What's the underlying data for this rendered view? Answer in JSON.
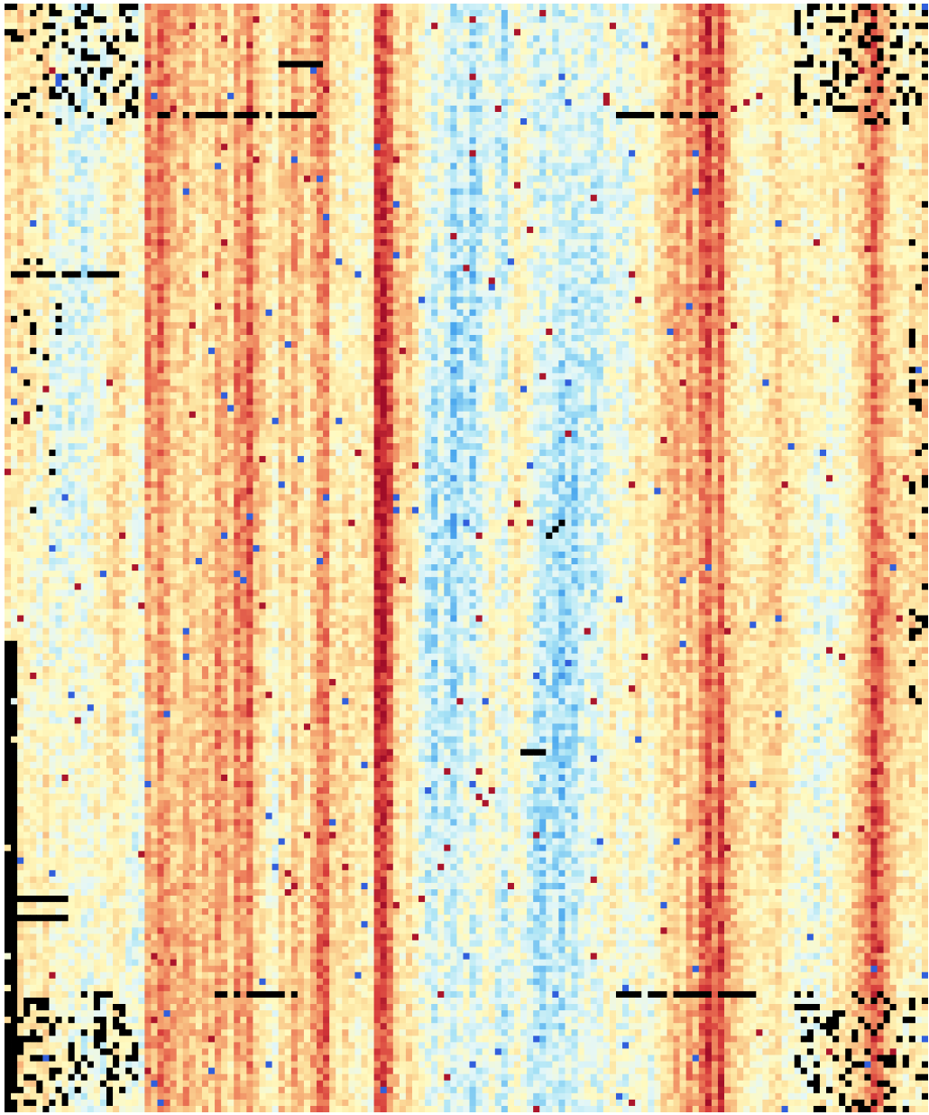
{
  "chart_data": {
    "type": "heatmap",
    "title": "",
    "xlabel": "",
    "ylabel": "",
    "grid": false,
    "legend": "none",
    "n_cols": 145,
    "n_rows": 174,
    "colormap": {
      "name": "RdYlBu_r",
      "stops": [
        "#2c4fd8",
        "#4aa7ee",
        "#a9e3f5",
        "#e4f7f8",
        "#fffac0",
        "#fde3a0",
        "#f7b47a",
        "#ec7a58",
        "#d63a3a",
        "#a10d28"
      ],
      "nodata_color": "#000000"
    },
    "value_range": [
      0,
      1
    ],
    "column_profile": [
      0.52,
      0.46,
      0.55,
      0.48,
      0.5,
      0.44,
      0.52,
      0.4,
      0.38,
      0.42,
      0.36,
      0.4,
      0.34,
      0.38,
      0.44,
      0.4,
      0.48,
      0.55,
      0.5,
      0.42,
      0.38,
      0.4,
      0.72,
      0.66,
      0.78,
      0.7,
      0.62,
      0.58,
      0.66,
      0.6,
      0.54,
      0.62,
      0.58,
      0.7,
      0.64,
      0.56,
      0.74,
      0.68,
      0.8,
      0.62,
      0.56,
      0.48,
      0.44,
      0.6,
      0.52,
      0.66,
      0.58,
      0.5,
      0.64,
      0.74,
      0.78,
      0.54,
      0.48,
      0.56,
      0.5,
      0.46,
      0.52,
      0.48,
      0.88,
      0.92,
      0.8,
      0.6,
      0.52,
      0.58,
      0.48,
      0.38,
      0.32,
      0.28,
      0.36,
      0.3,
      0.24,
      0.3,
      0.34,
      0.26,
      0.32,
      0.38,
      0.42,
      0.34,
      0.3,
      0.4,
      0.48,
      0.42,
      0.36,
      0.3,
      0.26,
      0.32,
      0.28,
      0.24,
      0.3,
      0.26,
      0.32,
      0.36,
      0.3,
      0.34,
      0.4,
      0.44,
      0.38,
      0.36,
      0.42,
      0.5,
      0.46,
      0.4,
      0.52,
      0.56,
      0.6,
      0.66,
      0.58,
      0.7,
      0.62,
      0.78,
      0.86,
      0.72,
      0.84,
      0.64,
      0.58,
      0.52,
      0.5,
      0.46,
      0.48,
      0.52,
      0.54,
      0.58,
      0.5,
      0.48,
      0.46,
      0.42,
      0.44,
      0.38,
      0.46,
      0.4,
      0.48,
      0.44,
      0.5,
      0.56,
      0.62,
      0.7,
      0.84,
      0.76,
      0.64,
      0.58,
      0.52,
      0.48,
      0.54,
      0.5,
      0.56
    ],
    "nodata_regions": [
      {
        "cols": [
          0,
          20
        ],
        "rows": [
          0,
          18
        ],
        "density": 0.22
      },
      {
        "cols": [
          124,
          144
        ],
        "rows": [
          0,
          18
        ],
        "density": 0.22
      },
      {
        "cols": [
          0,
          20
        ],
        "rows": [
          155,
          173
        ],
        "density": 0.22
      },
      {
        "cols": [
          124,
          144
        ],
        "rows": [
          155,
          173
        ],
        "density": 0.22
      },
      {
        "cols": [
          0,
          1
        ],
        "rows": [
          100,
          173
        ],
        "density": 0.95
      },
      {
        "cols": [
          142,
          144
        ],
        "rows": [
          30,
          110
        ],
        "density": 0.12
      },
      {
        "cols": [
          0,
          8
        ],
        "rows": [
          40,
          80
        ],
        "density": 0.06
      }
    ],
    "nodata_lines": [
      {
        "col_start": 23,
        "col_end": 48,
        "row": 17
      },
      {
        "col_start": 96,
        "col_end": 112,
        "row": 17
      },
      {
        "col_start": 33,
        "col_end": 45,
        "row": 155
      },
      {
        "col_start": 96,
        "col_end": 117,
        "row": 155
      },
      {
        "col_start": 43,
        "col_end": 49,
        "row": 9
      },
      {
        "col_start": 1,
        "col_end": 17,
        "row": 42
      },
      {
        "col_start": 1,
        "col_end": 9,
        "row": 140
      },
      {
        "col_start": 1,
        "col_end": 9,
        "row": 143
      },
      {
        "col_start": 84,
        "col_end": 89,
        "row": 79,
        "diagonal": true
      },
      {
        "col_start": 81,
        "col_end": 84,
        "row": 117
      }
    ],
    "seed": 137
  }
}
